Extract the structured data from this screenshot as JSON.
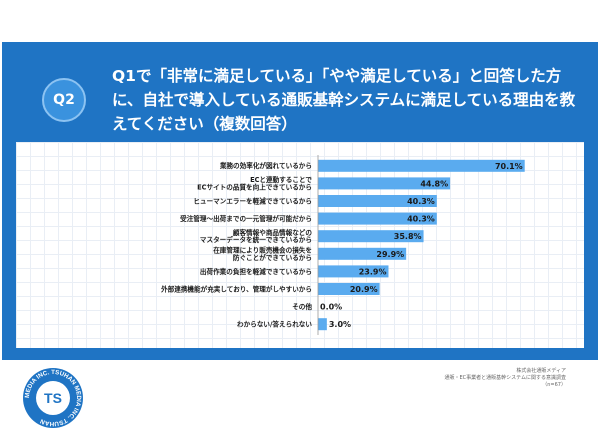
{
  "header": {
    "badge": "Q2",
    "question": "Q1で「非常に満足している」「やや満足している」と回答した方に、自社で導入している通販基幹システムに満足している理由を教えてください（複数回答）"
  },
  "source_note": {
    "line1": "株式会社通販メディア",
    "line2": "通販・EC事業者と通販基幹システムに関する意識調査",
    "line3": "（n=67）"
  },
  "logo": {
    "text": "MEDIA INC. TSUHAN MEDIA INC. TSUHAN",
    "letter": "TS"
  },
  "colors": {
    "frame": "#1f74c4",
    "bar": "#5aabef",
    "label": "#1a1a1a"
  },
  "chart_data": {
    "type": "bar",
    "orientation": "horizontal",
    "categories": [
      [
        "業務の効率化が図れているから"
      ],
      [
        "ECと連動することで",
        "ECサイトの品質を向上できているから"
      ],
      [
        "ヒューマンエラーを軽減できているから"
      ],
      [
        "受注管理〜出荷までの一元管理が可能だから"
      ],
      [
        "顧客情報や商品情報などの",
        "マスターデータを統一できているから"
      ],
      [
        "在庫管理により販売機会の損失を",
        "防ぐことができているから"
      ],
      [
        "出荷作業の負担を軽減できているから"
      ],
      [
        "外部連携機能が充実しており、管理がしやすいから"
      ],
      [
        "その他"
      ],
      [
        "わからない/答えられない"
      ]
    ],
    "values": [
      70.1,
      44.8,
      40.3,
      40.3,
      35.8,
      29.9,
      23.9,
      20.9,
      0.0,
      3.0
    ],
    "value_labels": [
      "70.1%",
      "44.8%",
      "40.3%",
      "40.3%",
      "35.8%",
      "29.9%",
      "23.9%",
      "20.9%",
      "0.0%",
      "3.0%"
    ],
    "xlim": [
      0,
      78
    ]
  }
}
